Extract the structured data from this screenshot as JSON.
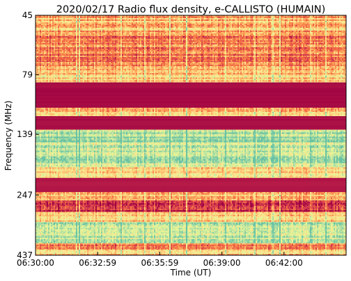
{
  "chart_data": {
    "type": "heatmap",
    "title": "2020/02/17  Radio flux density, e-CALLISTO (HUMAIN)",
    "xlabel": "Time (UT)",
    "ylabel": "Frequency (MHz)",
    "x_ticks": [
      "06:30:00",
      "06:32:59",
      "06:35:59",
      "06:39:00",
      "06:42:00"
    ],
    "y_ticks": [
      "45",
      "79",
      "139",
      "247",
      "437"
    ],
    "y_scale": "log",
    "ylim_mhz": [
      437,
      45
    ],
    "xlim_seconds": [
      0,
      900
    ],
    "colormap": "Spectral_r",
    "colors": {
      "low": "#9e0142",
      "mid_low": "#d53e4f",
      "mid": "#f46d43",
      "mid_high": "#fdae61",
      "high": "#fee08b",
      "peak_a": "#e6f598",
      "peak_b": "#abdda4",
      "peak_c": "#66c2a5"
    },
    "band_intensity": [
      {
        "from": 45,
        "to": 52,
        "level": 0.45
      },
      {
        "from": 52,
        "to": 70,
        "level": 0.32
      },
      {
        "from": 70,
        "to": 79,
        "level": 0.4
      },
      {
        "from": 79,
        "to": 85,
        "level": 0.55
      },
      {
        "from": 85,
        "to": 108,
        "level": 0.02
      },
      {
        "from": 108,
        "to": 117,
        "level": 0.45
      },
      {
        "from": 117,
        "to": 133,
        "level": 0.03
      },
      {
        "from": 133,
        "to": 150,
        "level": 0.85
      },
      {
        "from": 150,
        "to": 190,
        "level": 0.8
      },
      {
        "from": 190,
        "to": 210,
        "level": 0.55
      },
      {
        "from": 210,
        "to": 240,
        "level": 0.05
      },
      {
        "from": 240,
        "to": 260,
        "level": 0.45
      },
      {
        "from": 260,
        "to": 290,
        "level": 0.1
      },
      {
        "from": 290,
        "to": 320,
        "level": 0.55
      },
      {
        "from": 320,
        "to": 390,
        "level": 0.8
      },
      {
        "from": 390,
        "to": 415,
        "level": 0.35
      },
      {
        "from": 415,
        "to": 437,
        "level": 0.5
      }
    ]
  }
}
